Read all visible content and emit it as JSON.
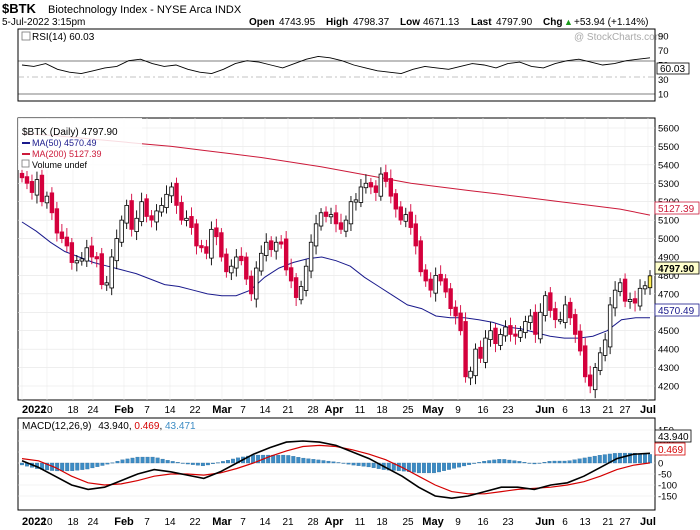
{
  "header": {
    "symbol": "$BTK",
    "name": "Biotechnology Index - NYSE Arca INDX",
    "date": "5-Jul-2022 3:15pm",
    "open_label": "Open",
    "open": "4743.95",
    "high_label": "High",
    "high": "4798.37",
    "low_label": "Low",
    "low": "4671.13",
    "last_label": "Last",
    "last": "4797.90",
    "chg_label": "Chg",
    "chg": "+53.94 (+1.14%)",
    "up_arrow": "▲",
    "watermark": "@ StockCharts.com"
  },
  "rsi_panel": {
    "legend": "RSI(14) 60.03",
    "value_badge": "60.03",
    "ticks": [
      "90",
      "70",
      "50",
      "30",
      "10"
    ]
  },
  "price_panel": {
    "legend_main": "$BTK (Daily) 4797.90",
    "legend_ma50": "MA(50) 4570.49",
    "legend_ma200": "MA(200) 5127.39",
    "legend_volume": "Volume undef",
    "badge_last": "4797.90",
    "badge_ma200": "5127.39",
    "badge_ma50": "4570.49",
    "ticks": [
      "5600",
      "5500",
      "5400",
      "5300",
      "5200",
      "5100",
      "5000",
      "4900",
      "4800",
      "4700",
      "4600",
      "4500",
      "4400",
      "4300",
      "4200"
    ]
  },
  "macd_panel": {
    "legend_prefix": "MACD(12,26,9)",
    "legend_macd": "43.940",
    "legend_signal": "0.469",
    "legend_hist": "43.471",
    "badge_macd": "43.940",
    "badge_signal": "0.469",
    "ticks": [
      "150",
      "100",
      "50",
      "0",
      "-50",
      "-100",
      "-150"
    ]
  },
  "x_axis": {
    "labels": [
      "2022",
      "10",
      "18",
      "24",
      "Feb",
      "7",
      "14",
      "22",
      "Mar",
      "7",
      "14",
      "21",
      "28",
      "Apr",
      "11",
      "18",
      "25",
      "May",
      "9",
      "16",
      "23",
      "May",
      "Jun",
      "6",
      "13",
      "21",
      "27",
      "Jul"
    ]
  },
  "colors": {
    "up_candle": "#000000",
    "down_candle": "#d4003c",
    "ma50": "#1a1a8c",
    "ma200": "#cc1a3a",
    "macd_line": "#000000",
    "signal_line": "#d40000",
    "histogram": "#3d8cc4",
    "last_badge_bg": "#ffffcc"
  },
  "chart_data": {
    "type": "candlestick",
    "x_range": [
      "2022-01-03",
      "2022-07-05"
    ],
    "price_ylim": [
      4150,
      5650
    ],
    "price_series": [
      {
        "name": "$BTK (Daily)",
        "style": "candles",
        "closes": [
          5330,
          5300,
          5250,
          5320,
          5200,
          5230,
          5140,
          5030,
          5000,
          4960,
          4870,
          4880,
          4890,
          4950,
          4900,
          4890,
          4750,
          4760,
          4900,
          5000,
          5100,
          5180,
          5050,
          5110,
          5200,
          5120,
          5100,
          5150,
          5180,
          5240,
          5280,
          5180,
          5100,
          5110,
          5060,
          4960,
          4950,
          4920,
          5050,
          5010,
          4900,
          4820,
          4850,
          4900,
          4880,
          4780,
          4700,
          4840,
          4920,
          4980,
          4940,
          4980,
          4970,
          4830,
          4770,
          4680,
          4740,
          4850,
          4980,
          5080,
          5140,
          5120,
          5130,
          5080,
          5050,
          5100,
          5200,
          5210,
          5280,
          5300,
          5280,
          5250,
          5350,
          5310,
          5230,
          5160,
          5100,
          5130,
          5060,
          4960,
          4820,
          4770,
          4720,
          4800,
          4770,
          4710,
          4620,
          4580,
          4500,
          4250,
          4280,
          4400,
          4350,
          4460,
          4500,
          4430,
          4480,
          4520,
          4480,
          4470,
          4500,
          4550,
          4580,
          4480,
          4600,
          4690,
          4610,
          4560,
          4560,
          4640,
          4570,
          4480,
          4390,
          4250,
          4200,
          4300,
          4380,
          4450,
          4640,
          4720,
          4760,
          4660,
          4670,
          4650,
          4730,
          4744,
          4797.9
        ]
      },
      {
        "name": "MA(50)",
        "values_sampled": [
          5090,
          5040,
          4980,
          4930,
          4900,
          4870,
          4850,
          4830,
          4810,
          4780,
          4750,
          4740,
          4720,
          4700,
          4690,
          4690,
          4720,
          4790,
          4840,
          4870,
          4890,
          4900,
          4880,
          4850,
          4790,
          4740,
          4690,
          4640,
          4620,
          4580,
          4570,
          4570,
          4560,
          4545,
          4520,
          4510,
          4490,
          4470,
          4460,
          4460,
          4470,
          4500,
          4560,
          4570,
          4570
        ]
      },
      {
        "name": "MA(200)",
        "values_sampled": [
          5570,
          5560,
          5545,
          5530,
          5515,
          5500,
          5480,
          5460,
          5440,
          5415,
          5390,
          5360,
          5330,
          5300,
          5280,
          5260,
          5240,
          5220,
          5200,
          5180,
          5160,
          5127.39
        ]
      }
    ],
    "rsi": {
      "name": "RSI(14)",
      "last": 60.03,
      "ylim": [
        0,
        100
      ],
      "values_sampled": [
        50,
        48,
        52,
        44,
        40,
        38,
        42,
        46,
        48,
        56,
        58,
        52,
        48,
        50,
        44,
        40,
        38,
        44,
        52,
        56,
        54,
        50,
        46,
        52,
        58,
        62,
        60,
        56,
        50,
        46,
        42,
        40,
        38,
        44,
        48,
        46,
        44,
        48,
        52,
        50,
        46,
        52,
        54,
        48,
        46,
        52,
        56,
        58,
        54,
        50,
        52,
        56,
        58,
        60.03
      ]
    },
    "macd": {
      "name": "MACD(12,26,9)",
      "macd": 43.94,
      "signal": 0.469,
      "histogram": 43.471,
      "ylim": [
        -200,
        200
      ],
      "macd_sampled": [
        10,
        -20,
        -60,
        -100,
        -120,
        -110,
        -80,
        -50,
        -30,
        -40,
        -55,
        -70,
        -40,
        0,
        40,
        70,
        95,
        100,
        95,
        80,
        50,
        20,
        -20,
        -60,
        -110,
        -150,
        -160,
        -150,
        -130,
        -110,
        -110,
        -120,
        -100,
        -90,
        -60,
        -20,
        20,
        40,
        43.94
      ],
      "signal_sampled": [
        20,
        10,
        -20,
        -60,
        -90,
        -100,
        -95,
        -80,
        -60,
        -50,
        -50,
        -55,
        -45,
        -25,
        0,
        30,
        55,
        75,
        80,
        75,
        60,
        40,
        15,
        -20,
        -60,
        -100,
        -130,
        -140,
        -140,
        -130,
        -120,
        -115,
        -110,
        -100,
        -85,
        -60,
        -30,
        -10,
        0.469
      ]
    }
  }
}
